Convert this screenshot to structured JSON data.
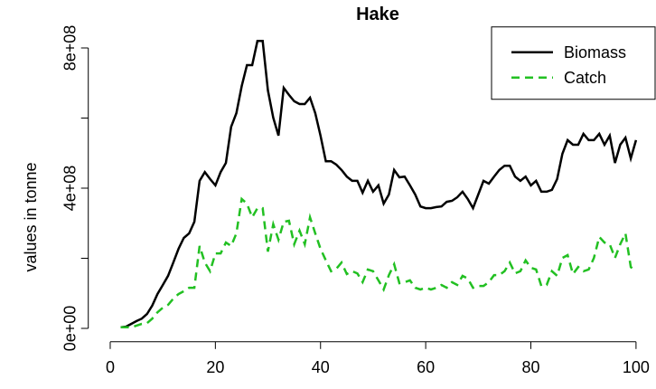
{
  "chart_data": {
    "type": "line",
    "title": "Hake",
    "y_label": "values in tonne",
    "x": [
      2,
      3,
      4,
      5,
      6,
      7,
      8,
      9,
      10,
      11,
      12,
      13,
      14,
      15,
      16,
      17,
      18,
      19,
      20,
      21,
      22,
      23,
      24,
      25,
      26,
      27,
      28,
      29,
      30,
      31,
      32,
      33,
      34,
      35,
      36,
      37,
      38,
      39,
      40,
      41,
      42,
      43,
      44,
      45,
      46,
      47,
      48,
      49,
      50,
      51,
      52,
      53,
      54,
      55,
      56,
      57,
      58,
      59,
      60,
      61,
      62,
      63,
      64,
      65,
      66,
      67,
      68,
      69,
      70,
      71,
      72,
      73,
      74,
      75,
      76,
      77,
      78,
      79,
      80,
      81,
      82,
      83,
      84,
      85,
      86,
      87,
      88,
      89,
      90,
      91,
      92,
      93,
      94,
      95,
      96,
      97,
      98,
      99,
      100
    ],
    "series": [
      {
        "name": "Biomass",
        "color": "#000000",
        "dash": false,
        "values": [
          3000000.0,
          5000000.0,
          13000000.0,
          21000000.0,
          28000000.0,
          41000000.0,
          65000000.0,
          98000000.0,
          124000000.0,
          150000000.0,
          188000000.0,
          227000000.0,
          258000000.0,
          271000000.0,
          304000000.0,
          421000000.0,
          446000000.0,
          426000000.0,
          408000000.0,
          446000000.0,
          472000000.0,
          575000000.0,
          614000000.0,
          691000000.0,
          751000000.0,
          751000000.0,
          820000000.0,
          820000000.0,
          679000000.0,
          601000000.0,
          550000000.0,
          686000000.0,
          666000000.0,
          648000000.0,
          640000000.0,
          640000000.0,
          658000000.0,
          614000000.0,
          550000000.0,
          477000000.0,
          477000000.0,
          467000000.0,
          452000000.0,
          433000000.0,
          421000000.0,
          421000000.0,
          387000000.0,
          421000000.0,
          390000000.0,
          408000000.0,
          356000000.0,
          382000000.0,
          452000000.0,
          431000000.0,
          433000000.0,
          408000000.0,
          382000000.0,
          348000000.0,
          343000000.0,
          343000000.0,
          346000000.0,
          348000000.0,
          361000000.0,
          364000000.0,
          374000000.0,
          390000000.0,
          369000000.0,
          343000000.0,
          382000000.0,
          421000000.0,
          413000000.0,
          433000000.0,
          452000000.0,
          464000000.0,
          464000000.0,
          433000000.0,
          421000000.0,
          433000000.0,
          408000000.0,
          421000000.0,
          390000000.0,
          390000000.0,
          395000000.0,
          426000000.0,
          498000000.0,
          537000000.0,
          524000000.0,
          524000000.0,
          555000000.0,
          537000000.0,
          537000000.0,
          555000000.0,
          524000000.0,
          550000000.0,
          472000000.0,
          524000000.0,
          544000000.0,
          485000000.0,
          537000000.0
        ]
      },
      {
        "name": "Catch",
        "color": "#22c022",
        "dash": true,
        "values": [
          3000000.0,
          3000000.0,
          3000000.0,
          8000000.0,
          13000000.0,
          15000000.0,
          28000000.0,
          46000000.0,
          59000000.0,
          67000000.0,
          85000000.0,
          98000000.0,
          106000000.0,
          116000000.0,
          116000000.0,
          235000000.0,
          188000000.0,
          163000000.0,
          214000000.0,
          214000000.0,
          245000000.0,
          235000000.0,
          271000000.0,
          369000000.0,
          356000000.0,
          317000000.0,
          343000000.0,
          343000000.0,
          219000000.0,
          297000000.0,
          253000000.0,
          304000000.0,
          307000000.0,
          240000000.0,
          279000000.0,
          240000000.0,
          317000000.0,
          271000000.0,
          227000000.0,
          194000000.0,
          163000000.0,
          170000000.0,
          188000000.0,
          155000000.0,
          163000000.0,
          157000000.0,
          132000000.0,
          168000000.0,
          163000000.0,
          137000000.0,
          111000000.0,
          152000000.0,
          183000000.0,
          129000000.0,
          132000000.0,
          137000000.0,
          116000000.0,
          111000000.0,
          116000000.0,
          111000000.0,
          116000000.0,
          124000000.0,
          116000000.0,
          132000000.0,
          124000000.0,
          150000000.0,
          142000000.0,
          116000000.0,
          121000000.0,
          121000000.0,
          132000000.0,
          152000000.0,
          152000000.0,
          163000000.0,
          188000000.0,
          157000000.0,
          163000000.0,
          194000000.0,
          173000000.0,
          168000000.0,
          121000000.0,
          124000000.0,
          163000000.0,
          150000000.0,
          201000000.0,
          209000000.0,
          155000000.0,
          175000000.0,
          163000000.0,
          168000000.0,
          201000000.0,
          261000000.0,
          245000000.0,
          240000000.0,
          201000000.0,
          240000000.0,
          271000000.0,
          175000000.0,
          163000000.0
        ]
      }
    ],
    "xlim": [
      -4,
      103.8
    ],
    "xticks": [
      0,
      20,
      40,
      60,
      80,
      100
    ],
    "ylim": [
      -33000000,
      860000000
    ],
    "yticks": [
      {
        "value": 0,
        "label": "0e+00"
      },
      {
        "value": 200000000,
        "label": null
      },
      {
        "value": 400000000,
        "label": "4e+08"
      },
      {
        "value": 600000000,
        "label": null
      },
      {
        "value": 800000000,
        "label": "8e+08"
      }
    ],
    "legend": "topright"
  }
}
